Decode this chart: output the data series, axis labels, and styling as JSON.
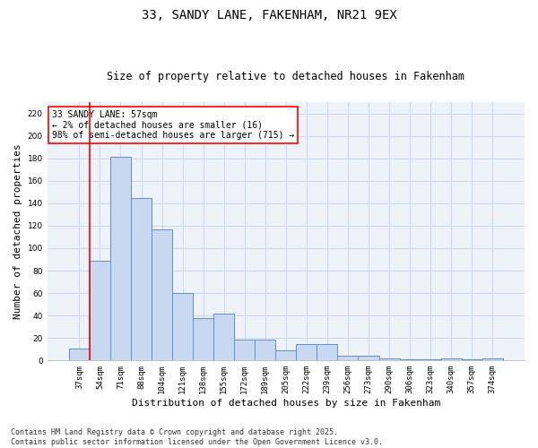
{
  "title": "33, SANDY LANE, FAKENHAM, NR21 9EX",
  "subtitle": "Size of property relative to detached houses in Fakenham",
  "xlabel": "Distribution of detached houses by size in Fakenham",
  "ylabel": "Number of detached properties",
  "categories": [
    "37sqm",
    "54sqm",
    "71sqm",
    "88sqm",
    "104sqm",
    "121sqm",
    "138sqm",
    "155sqm",
    "172sqm",
    "189sqm",
    "205sqm",
    "222sqm",
    "239sqm",
    "256sqm",
    "273sqm",
    "290sqm",
    "306sqm",
    "323sqm",
    "340sqm",
    "357sqm",
    "374sqm"
  ],
  "values": [
    11,
    89,
    181,
    145,
    117,
    60,
    38,
    42,
    19,
    19,
    9,
    15,
    15,
    4,
    4,
    2,
    1,
    1,
    2,
    1,
    2
  ],
  "bar_color": "#c8d8f0",
  "bar_edge_color": "#6090c8",
  "red_line_index": 1,
  "annotation_text": "33 SANDY LANE: 57sqm\n← 2% of detached houses are smaller (16)\n98% of semi-detached houses are larger (715) →",
  "annotation_box_color": "white",
  "annotation_box_edge_color": "red",
  "grid_color": "#c8d8f0",
  "background_color": "#eef3fa",
  "ylim": [
    0,
    230
  ],
  "yticks": [
    0,
    20,
    40,
    60,
    80,
    100,
    120,
    140,
    160,
    180,
    200,
    220
  ],
  "footer_line1": "Contains HM Land Registry data © Crown copyright and database right 2025.",
  "footer_line2": "Contains public sector information licensed under the Open Government Licence v3.0.",
  "title_fontsize": 10,
  "subtitle_fontsize": 8.5,
  "tick_fontsize": 6.5,
  "ylabel_fontsize": 8,
  "xlabel_fontsize": 8,
  "annotation_fontsize": 7,
  "footer_fontsize": 6
}
